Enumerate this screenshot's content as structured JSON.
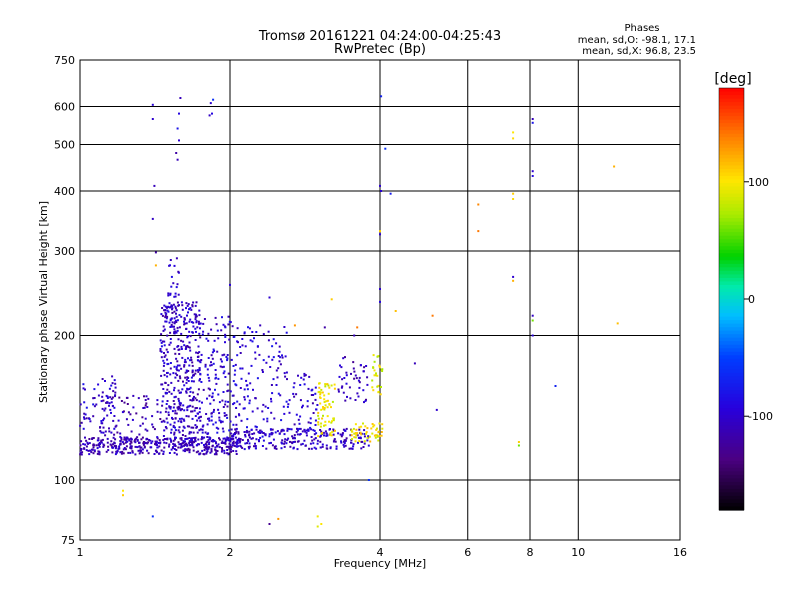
{
  "chart_data": {
    "type": "scatter",
    "title": "Tromsø 20161221 04:24:00-04:25:43",
    "subtitle": "RwPretec (Bp)",
    "xlabel": "Frequency [MHz]",
    "ylabel": "Stationary phase Virtual Height [km]",
    "x_scale": "log2",
    "y_scale": "log",
    "xlim": [
      1,
      16
    ],
    "ylim": [
      75,
      750
    ],
    "x_ticks": [
      1,
      2,
      4,
      6,
      8,
      10,
      16
    ],
    "y_ticks": [
      75,
      100,
      200,
      300,
      400,
      500,
      600,
      750
    ],
    "grid": true,
    "stats": {
      "heading": "Phases",
      "line_o": "mean, sd,O: -98.1, 17.1",
      "line_x": "mean, sd,X:  96.8, 23.5"
    },
    "colorbar": {
      "label": "[deg]",
      "min": -180,
      "max": 180,
      "ticks": [
        -100,
        0,
        100
      ]
    },
    "bands": [
      {
        "x0": 1.0,
        "x1": 2.1,
        "y0": 113,
        "y1": 123,
        "phase": -110,
        "n": 380
      },
      {
        "x0": 2.0,
        "x1": 3.8,
        "y0": 116,
        "y1": 128,
        "phase": -105,
        "n": 230
      },
      {
        "x0": 1.0,
        "x1": 1.2,
        "y0": 125,
        "y1": 165,
        "phase": -100,
        "n": 70
      },
      {
        "x0": 1.1,
        "x1": 1.45,
        "y0": 118,
        "y1": 150,
        "phase": -115,
        "n": 80
      },
      {
        "x0": 1.45,
        "x1": 1.75,
        "y0": 118,
        "y1": 235,
        "phase": -105,
        "n": 420
      },
      {
        "x0": 1.5,
        "x1": 1.58,
        "y0": 200,
        "y1": 290,
        "phase": -100,
        "n": 30
      },
      {
        "x0": 1.75,
        "x1": 2.05,
        "y0": 120,
        "y1": 220,
        "phase": -98,
        "n": 160
      },
      {
        "x0": 2.05,
        "x1": 2.6,
        "y0": 120,
        "y1": 210,
        "phase": -95,
        "n": 130
      },
      {
        "x0": 2.6,
        "x1": 3.0,
        "y0": 125,
        "y1": 170,
        "phase": -100,
        "n": 60
      },
      {
        "x0": 3.0,
        "x1": 3.25,
        "y0": 122,
        "y1": 160,
        "phase": 95,
        "n": 65
      },
      {
        "x0": 3.3,
        "x1": 3.8,
        "y0": 145,
        "y1": 182,
        "phase": -110,
        "n": 45
      },
      {
        "x0": 3.5,
        "x1": 4.05,
        "y0": 120,
        "y1": 132,
        "phase": 100,
        "n": 50
      },
      {
        "x0": 3.85,
        "x1": 4.05,
        "y0": 150,
        "y1": 185,
        "phase": 90,
        "n": 25
      }
    ],
    "points": [
      {
        "x": 1.4,
        "y": 605,
        "phase": -95
      },
      {
        "x": 1.4,
        "y": 565,
        "phase": -100
      },
      {
        "x": 1.41,
        "y": 410,
        "phase": -110
      },
      {
        "x": 1.4,
        "y": 350,
        "phase": -105
      },
      {
        "x": 1.42,
        "y": 298,
        "phase": -120
      },
      {
        "x": 1.42,
        "y": 280,
        "phase": 120
      },
      {
        "x": 1.59,
        "y": 625,
        "phase": -110
      },
      {
        "x": 1.58,
        "y": 580,
        "phase": -90
      },
      {
        "x": 1.57,
        "y": 540,
        "phase": -80
      },
      {
        "x": 1.58,
        "y": 510,
        "phase": -100
      },
      {
        "x": 1.56,
        "y": 480,
        "phase": -120
      },
      {
        "x": 1.57,
        "y": 465,
        "phase": -110
      },
      {
        "x": 1.85,
        "y": 620,
        "phase": -60
      },
      {
        "x": 1.83,
        "y": 610,
        "phase": -100
      },
      {
        "x": 1.84,
        "y": 580,
        "phase": -90
      },
      {
        "x": 1.82,
        "y": 575,
        "phase": -105
      },
      {
        "x": 4.02,
        "y": 630,
        "phase": -70
      },
      {
        "x": 4.1,
        "y": 490,
        "phase": -60
      },
      {
        "x": 4.0,
        "y": 410,
        "phase": -100
      },
      {
        "x": 4.02,
        "y": 400,
        "phase": -95
      },
      {
        "x": 4.2,
        "y": 395,
        "phase": -75
      },
      {
        "x": 4.0,
        "y": 330,
        "phase": 110
      },
      {
        "x": 4.0,
        "y": 325,
        "phase": -100
      },
      {
        "x": 4.0,
        "y": 250,
        "phase": -100
      },
      {
        "x": 4.0,
        "y": 235,
        "phase": -90
      },
      {
        "x": 4.3,
        "y": 225,
        "phase": 115
      },
      {
        "x": 5.1,
        "y": 220,
        "phase": 140
      },
      {
        "x": 4.7,
        "y": 175,
        "phase": -110
      },
      {
        "x": 5.2,
        "y": 140,
        "phase": -100
      },
      {
        "x": 6.3,
        "y": 375,
        "phase": 135
      },
      {
        "x": 6.3,
        "y": 330,
        "phase": 140
      },
      {
        "x": 7.4,
        "y": 530,
        "phase": 100
      },
      {
        "x": 7.4,
        "y": 515,
        "phase": 105
      },
      {
        "x": 7.4,
        "y": 395,
        "phase": 110
      },
      {
        "x": 7.4,
        "y": 385,
        "phase": 105
      },
      {
        "x": 7.4,
        "y": 265,
        "phase": -100
      },
      {
        "x": 7.4,
        "y": 260,
        "phase": 120
      },
      {
        "x": 8.1,
        "y": 565,
        "phase": -110
      },
      {
        "x": 8.1,
        "y": 555,
        "phase": -80
      },
      {
        "x": 8.1,
        "y": 440,
        "phase": -100
      },
      {
        "x": 8.1,
        "y": 430,
        "phase": -90
      },
      {
        "x": 8.1,
        "y": 220,
        "phase": -105
      },
      {
        "x": 8.1,
        "y": 215,
        "phase": 60
      },
      {
        "x": 8.1,
        "y": 200,
        "phase": -95
      },
      {
        "x": 7.6,
        "y": 120,
        "phase": 110
      },
      {
        "x": 7.6,
        "y": 118,
        "phase": 60
      },
      {
        "x": 9.0,
        "y": 157,
        "phase": -70
      },
      {
        "x": 11.8,
        "y": 450,
        "phase": 120
      },
      {
        "x": 12.0,
        "y": 212,
        "phase": 115
      },
      {
        "x": 1.4,
        "y": 84,
        "phase": -60
      },
      {
        "x": 1.22,
        "y": 95,
        "phase": 100
      },
      {
        "x": 1.22,
        "y": 93,
        "phase": 110
      },
      {
        "x": 2.4,
        "y": 81,
        "phase": -130
      },
      {
        "x": 2.5,
        "y": 83,
        "phase": 130
      },
      {
        "x": 3.0,
        "y": 84,
        "phase": 95
      },
      {
        "x": 3.05,
        "y": 81,
        "phase": 100
      },
      {
        "x": 3.0,
        "y": 80,
        "phase": 90
      },
      {
        "x": 3.8,
        "y": 100,
        "phase": -60
      },
      {
        "x": 3.1,
        "y": 208,
        "phase": -120
      },
      {
        "x": 3.2,
        "y": 238,
        "phase": 110
      },
      {
        "x": 3.6,
        "y": 208,
        "phase": 140
      },
      {
        "x": 3.55,
        "y": 200,
        "phase": -110
      },
      {
        "x": 2.4,
        "y": 240,
        "phase": -100
      },
      {
        "x": 2.3,
        "y": 210,
        "phase": -110
      },
      {
        "x": 2.7,
        "y": 210,
        "phase": 130
      },
      {
        "x": 2.0,
        "y": 255,
        "phase": -95
      }
    ]
  }
}
